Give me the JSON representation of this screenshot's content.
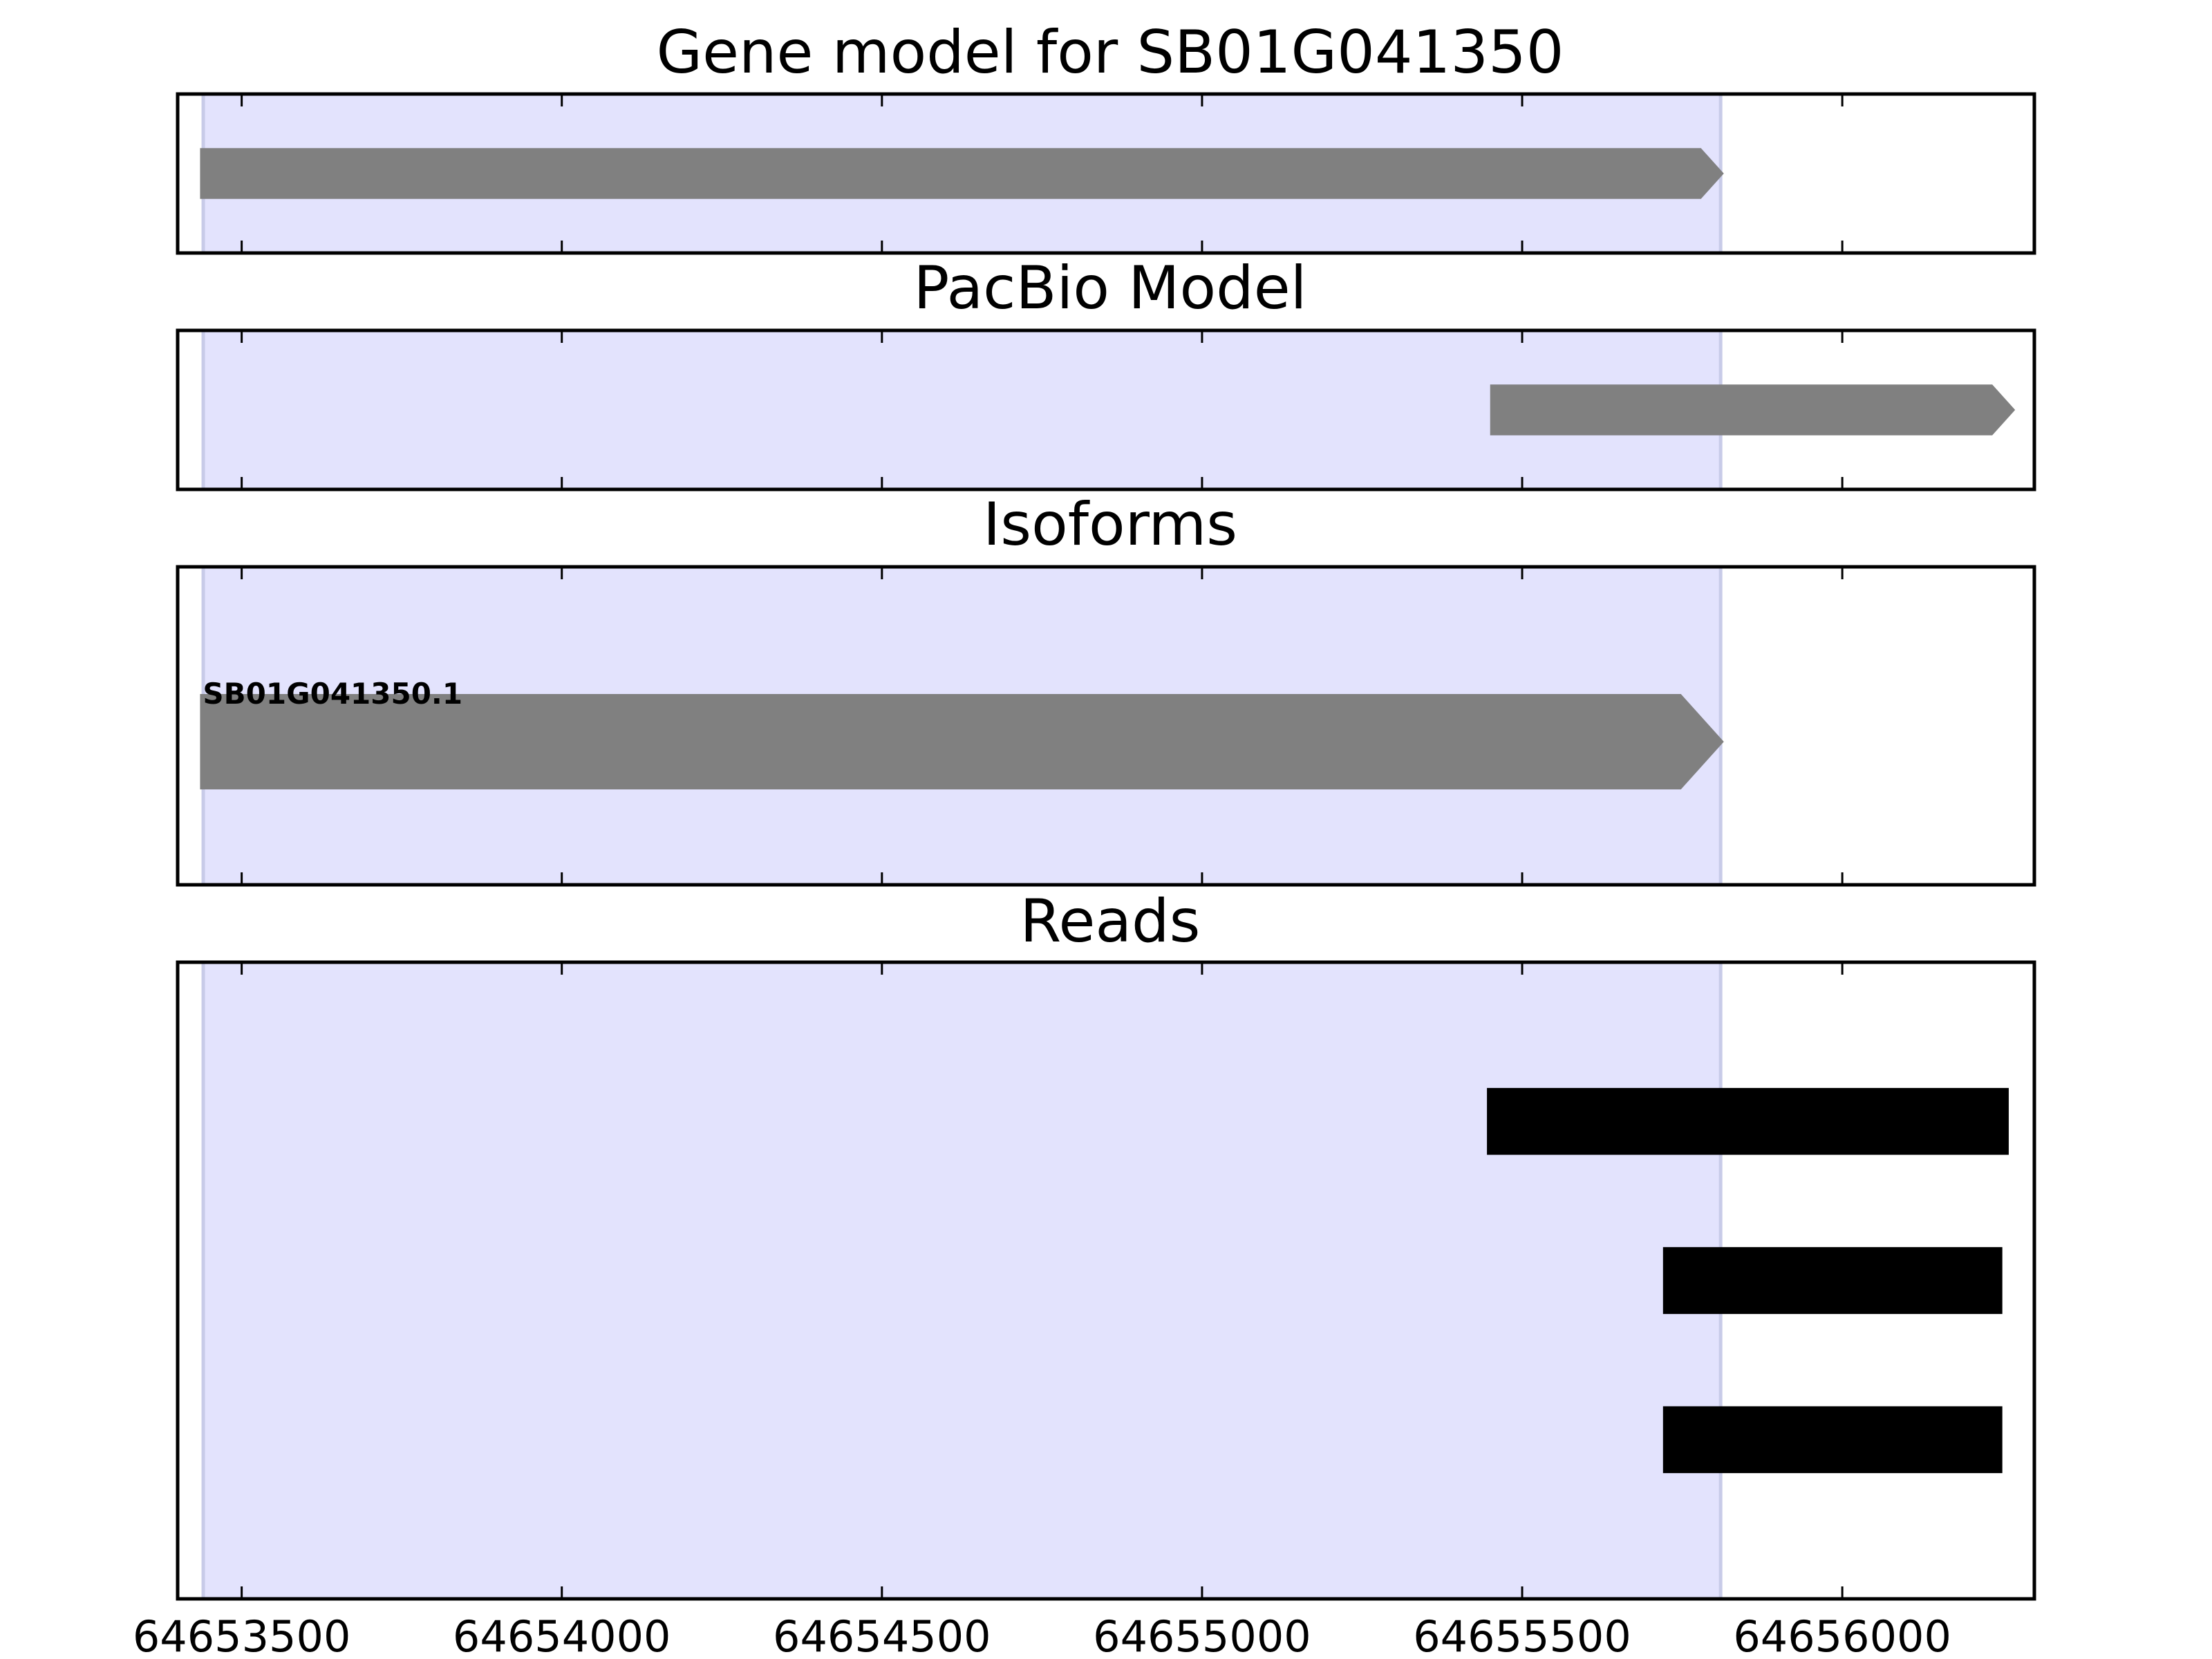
{
  "chart_data": {
    "type": "gene_track",
    "gene_id": "SB01G041350",
    "x_ticks": [
      64653500,
      64654000,
      64654500,
      64655000,
      64655500,
      64656000
    ],
    "xlim": [
      64653400,
      64656300
    ],
    "highlight_region": {
      "start": 64653440,
      "end": 64655810,
      "color": "#e3e3fd"
    },
    "colors": {
      "model": "#808080",
      "read": "#000000",
      "frame": "#000000"
    },
    "panels": [
      {
        "id": "gene-model",
        "title": "Gene model for SB01G041350",
        "features": [
          {
            "start": 64653435,
            "end": 64655815,
            "strand": "+",
            "y": 0.5,
            "height": 0.32,
            "color": "#808080"
          }
        ]
      },
      {
        "id": "pacbio-model",
        "title": "PacBio Model",
        "features": [
          {
            "start": 64655450,
            "end": 64656270,
            "strand": "+",
            "y": 0.5,
            "height": 0.32,
            "color": "#808080"
          }
        ]
      },
      {
        "id": "isoforms",
        "title": "Isoforms",
        "features": [
          {
            "label": "SB01G041350.1",
            "start": 64653435,
            "end": 64655815,
            "strand": "+",
            "y": 0.55,
            "height": 0.3,
            "color": "#808080"
          }
        ]
      },
      {
        "id": "reads",
        "title": "Reads",
        "features": [
          {
            "start": 64655445,
            "end": 64656260,
            "strand": "",
            "y": 0.25,
            "height": 0.105,
            "color": "#000000"
          },
          {
            "start": 64655720,
            "end": 64656250,
            "strand": "",
            "y": 0.5,
            "height": 0.105,
            "color": "#000000"
          },
          {
            "start": 64655720,
            "end": 64656250,
            "strand": "",
            "y": 0.75,
            "height": 0.105,
            "color": "#000000"
          }
        ]
      }
    ]
  }
}
